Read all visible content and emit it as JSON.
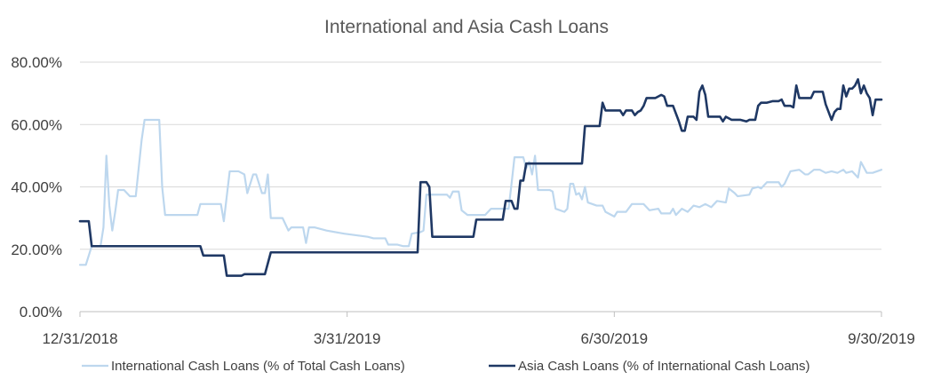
{
  "chart_data": {
    "type": "line",
    "title": "International  and Asia Cash Loans",
    "xlabel": "",
    "ylabel": "",
    "ylim": [
      0,
      80
    ],
    "y_ticks": [
      "0.00%",
      "20.00%",
      "40.00%",
      "60.00%",
      "80.00%"
    ],
    "x_ticks": [
      "12/31/2018",
      "3/31/2019",
      "6/30/2019",
      "9/30/2019"
    ],
    "x_range": [
      "2018-12-31",
      "2019-09-30"
    ],
    "grid": true,
    "legend_position": "bottom",
    "series": [
      {
        "name": "International Cash Loans (% of Total Cash Loans)",
        "color": "#bdd7ee",
        "points": [
          [
            "2018-12-31",
            15
          ],
          [
            "2019-01-02",
            15
          ],
          [
            "2019-01-04",
            21
          ],
          [
            "2019-01-07",
            21
          ],
          [
            "2019-01-08",
            27
          ],
          [
            "2019-01-09",
            50
          ],
          [
            "2019-01-10",
            34
          ],
          [
            "2019-01-11",
            26
          ],
          [
            "2019-01-12",
            32
          ],
          [
            "2019-01-13",
            39
          ],
          [
            "2019-01-15",
            39
          ],
          [
            "2019-01-17",
            37
          ],
          [
            "2019-01-19",
            37
          ],
          [
            "2019-01-21",
            55
          ],
          [
            "2019-01-22",
            61.5
          ],
          [
            "2019-01-25",
            61.5
          ],
          [
            "2019-01-27",
            61.5
          ],
          [
            "2019-01-28",
            40
          ],
          [
            "2019-01-29",
            31
          ],
          [
            "2019-02-02",
            31
          ],
          [
            "2019-02-09",
            31
          ],
          [
            "2019-02-10",
            34.5
          ],
          [
            "2019-02-14",
            34.5
          ],
          [
            "2019-02-17",
            34.5
          ],
          [
            "2019-02-18",
            29
          ],
          [
            "2019-02-20",
            45
          ],
          [
            "2019-02-23",
            45
          ],
          [
            "2019-02-25",
            44
          ],
          [
            "2019-02-26",
            38
          ],
          [
            "2019-02-28",
            44
          ],
          [
            "2019-03-01",
            44
          ],
          [
            "2019-03-03",
            38
          ],
          [
            "2019-03-04",
            38
          ],
          [
            "2019-03-05",
            44
          ],
          [
            "2019-03-06",
            30
          ],
          [
            "2019-03-10",
            30
          ],
          [
            "2019-03-11",
            28
          ],
          [
            "2019-03-12",
            26
          ],
          [
            "2019-03-13",
            27
          ],
          [
            "2019-03-17",
            27
          ],
          [
            "2019-03-18",
            22
          ],
          [
            "2019-03-19",
            27
          ],
          [
            "2019-03-21",
            27
          ],
          [
            "2019-03-25",
            26
          ],
          [
            "2019-03-31",
            25
          ],
          [
            "2019-04-08",
            24
          ],
          [
            "2019-04-10",
            23.5
          ],
          [
            "2019-04-14",
            23.5
          ],
          [
            "2019-04-15",
            21.5
          ],
          [
            "2019-04-18",
            21.5
          ],
          [
            "2019-04-20",
            21
          ],
          [
            "2019-04-22",
            21
          ],
          [
            "2019-04-23",
            25
          ],
          [
            "2019-04-26",
            25.5
          ],
          [
            "2019-04-27",
            26
          ],
          [
            "2019-04-28",
            37.5
          ],
          [
            "2019-05-05",
            37.5
          ],
          [
            "2019-05-06",
            36.5
          ],
          [
            "2019-05-07",
            38.5
          ],
          [
            "2019-05-09",
            38.5
          ],
          [
            "2019-05-10",
            32.5
          ],
          [
            "2019-05-12",
            31
          ],
          [
            "2019-05-18",
            31
          ],
          [
            "2019-05-20",
            33
          ],
          [
            "2019-05-26",
            33
          ],
          [
            "2019-05-27",
            41
          ],
          [
            "2019-05-28",
            49.5
          ],
          [
            "2019-05-31",
            49.5
          ],
          [
            "2019-06-01",
            46
          ],
          [
            "2019-06-02",
            48
          ],
          [
            "2019-06-03",
            44
          ],
          [
            "2019-06-04",
            50
          ],
          [
            "2019-06-05",
            39
          ],
          [
            "2019-06-09",
            39
          ],
          [
            "2019-06-10",
            38.5
          ],
          [
            "2019-06-11",
            33
          ],
          [
            "2019-06-14",
            32
          ],
          [
            "2019-06-15",
            33
          ],
          [
            "2019-06-16",
            41
          ],
          [
            "2019-06-17",
            41
          ],
          [
            "2019-06-18",
            37.5
          ],
          [
            "2019-06-19",
            38
          ],
          [
            "2019-06-20",
            36
          ],
          [
            "2019-06-21",
            40
          ],
          [
            "2019-06-22",
            35
          ],
          [
            "2019-06-25",
            34
          ],
          [
            "2019-06-27",
            34
          ],
          [
            "2019-06-28",
            32
          ],
          [
            "2019-07-01",
            30.5
          ],
          [
            "2019-07-02",
            32
          ],
          [
            "2019-07-05",
            32
          ],
          [
            "2019-07-07",
            34.5
          ],
          [
            "2019-07-11",
            34.5
          ],
          [
            "2019-07-13",
            32.5
          ],
          [
            "2019-07-16",
            33
          ],
          [
            "2019-07-17",
            31.5
          ],
          [
            "2019-07-20",
            31.5
          ],
          [
            "2019-07-21",
            33
          ],
          [
            "2019-07-22",
            31
          ],
          [
            "2019-07-24",
            33
          ],
          [
            "2019-07-26",
            32
          ],
          [
            "2019-07-28",
            34
          ],
          [
            "2019-07-30",
            33.5
          ],
          [
            "2019-08-01",
            34.5
          ],
          [
            "2019-08-03",
            33.5
          ],
          [
            "2019-08-05",
            35.5
          ],
          [
            "2019-08-08",
            35
          ],
          [
            "2019-08-09",
            39.5
          ],
          [
            "2019-08-11",
            38
          ],
          [
            "2019-08-12",
            37
          ],
          [
            "2019-08-16",
            37.5
          ],
          [
            "2019-08-17",
            39.5
          ],
          [
            "2019-08-19",
            40
          ],
          [
            "2019-08-20",
            39.5
          ],
          [
            "2019-08-22",
            41.5
          ],
          [
            "2019-08-26",
            41.5
          ],
          [
            "2019-08-27",
            40
          ],
          [
            "2019-08-28",
            41
          ],
          [
            "2019-08-29",
            43
          ],
          [
            "2019-08-30",
            45
          ],
          [
            "2019-09-02",
            45.5
          ],
          [
            "2019-09-04",
            44
          ],
          [
            "2019-09-05",
            44
          ],
          [
            "2019-09-07",
            45.5
          ],
          [
            "2019-09-09",
            45.5
          ],
          [
            "2019-09-11",
            44.5
          ],
          [
            "2019-09-13",
            45
          ],
          [
            "2019-09-15",
            44.5
          ],
          [
            "2019-09-17",
            45.5
          ],
          [
            "2019-09-18",
            44.5
          ],
          [
            "2019-09-20",
            45
          ],
          [
            "2019-09-22",
            43
          ],
          [
            "2019-09-23",
            48
          ],
          [
            "2019-09-25",
            44.5
          ],
          [
            "2019-09-27",
            44.5
          ],
          [
            "2019-09-30",
            45.5
          ]
        ]
      },
      {
        "name": "Asia Cash Loans (% of International Cash Loans)",
        "color": "#1f3864",
        "points": [
          [
            "2018-12-31",
            29
          ],
          [
            "2019-01-03",
            29
          ],
          [
            "2019-01-04",
            21
          ],
          [
            "2019-01-10",
            21
          ],
          [
            "2019-02-10",
            21
          ],
          [
            "2019-02-11",
            18
          ],
          [
            "2019-02-18",
            18
          ],
          [
            "2019-02-19",
            11.5
          ],
          [
            "2019-02-24",
            11.5
          ],
          [
            "2019-02-25",
            12
          ],
          [
            "2019-03-04",
            12
          ],
          [
            "2019-03-06",
            19
          ],
          [
            "2019-03-31",
            19
          ],
          [
            "2019-04-10",
            19
          ],
          [
            "2019-04-25",
            19
          ],
          [
            "2019-04-26",
            41.5
          ],
          [
            "2019-04-28",
            41.5
          ],
          [
            "2019-04-29",
            40
          ],
          [
            "2019-04-30",
            24
          ],
          [
            "2019-05-14",
            24
          ],
          [
            "2019-05-15",
            29.5
          ],
          [
            "2019-05-24",
            29.5
          ],
          [
            "2019-05-25",
            35.5
          ],
          [
            "2019-05-27",
            35.5
          ],
          [
            "2019-05-28",
            33
          ],
          [
            "2019-05-29",
            33
          ],
          [
            "2019-05-30",
            42
          ],
          [
            "2019-05-31",
            42
          ],
          [
            "2019-06-01",
            47.5
          ],
          [
            "2019-06-06",
            47.5
          ],
          [
            "2019-06-20",
            47.5
          ],
          [
            "2019-06-21",
            59.5
          ],
          [
            "2019-06-26",
            59.5
          ],
          [
            "2019-06-27",
            67
          ],
          [
            "2019-06-28",
            64.5
          ],
          [
            "2019-07-03",
            64.5
          ],
          [
            "2019-07-04",
            63
          ],
          [
            "2019-07-05",
            64.5
          ],
          [
            "2019-07-07",
            64.5
          ],
          [
            "2019-07-08",
            63
          ],
          [
            "2019-07-09",
            64
          ],
          [
            "2019-07-10",
            64.5
          ],
          [
            "2019-07-11",
            66
          ],
          [
            "2019-07-12",
            68.5
          ],
          [
            "2019-07-13",
            68.5
          ],
          [
            "2019-07-15",
            68.5
          ],
          [
            "2019-07-17",
            69.5
          ],
          [
            "2019-07-18",
            69
          ],
          [
            "2019-07-19",
            66
          ],
          [
            "2019-07-21",
            66
          ],
          [
            "2019-07-23",
            61
          ],
          [
            "2019-07-24",
            58
          ],
          [
            "2019-07-25",
            58
          ],
          [
            "2019-07-26",
            62.5
          ],
          [
            "2019-07-28",
            62.5
          ],
          [
            "2019-07-29",
            61.5
          ],
          [
            "2019-07-30",
            70.5
          ],
          [
            "2019-07-31",
            72.5
          ],
          [
            "2019-08-01",
            69.5
          ],
          [
            "2019-08-02",
            62.5
          ],
          [
            "2019-08-04",
            62.5
          ],
          [
            "2019-08-06",
            62.5
          ],
          [
            "2019-08-07",
            61
          ],
          [
            "2019-08-08",
            62.5
          ],
          [
            "2019-08-10",
            61.5
          ],
          [
            "2019-08-13",
            61.5
          ],
          [
            "2019-08-15",
            61
          ],
          [
            "2019-08-16",
            61.5
          ],
          [
            "2019-08-18",
            61.5
          ],
          [
            "2019-08-19",
            66
          ],
          [
            "2019-08-20",
            67
          ],
          [
            "2019-08-22",
            67
          ],
          [
            "2019-08-24",
            67.5
          ],
          [
            "2019-08-26",
            67.5
          ],
          [
            "2019-08-27",
            68
          ],
          [
            "2019-08-28",
            66
          ],
          [
            "2019-08-30",
            66
          ],
          [
            "2019-08-31",
            65.5
          ],
          [
            "2019-09-01",
            72.5
          ],
          [
            "2019-09-02",
            68.5
          ],
          [
            "2019-09-05",
            68.5
          ],
          [
            "2019-09-06",
            68.5
          ],
          [
            "2019-09-07",
            70.5
          ],
          [
            "2019-09-10",
            70.5
          ],
          [
            "2019-09-11",
            66.5
          ],
          [
            "2019-09-12",
            64
          ],
          [
            "2019-09-13",
            61.5
          ],
          [
            "2019-09-14",
            64
          ],
          [
            "2019-09-15",
            65
          ],
          [
            "2019-09-16",
            65
          ],
          [
            "2019-09-17",
            72.5
          ],
          [
            "2019-09-18",
            69
          ],
          [
            "2019-09-19",
            71.5
          ],
          [
            "2019-09-20",
            71.5
          ],
          [
            "2019-09-21",
            72.5
          ],
          [
            "2019-09-22",
            74.5
          ],
          [
            "2019-09-23",
            70
          ],
          [
            "2019-09-24",
            72.5
          ],
          [
            "2019-09-25",
            70
          ],
          [
            "2019-09-26",
            68.5
          ],
          [
            "2019-09-27",
            63
          ],
          [
            "2019-09-28",
            68
          ],
          [
            "2019-09-30",
            68
          ]
        ]
      }
    ]
  }
}
